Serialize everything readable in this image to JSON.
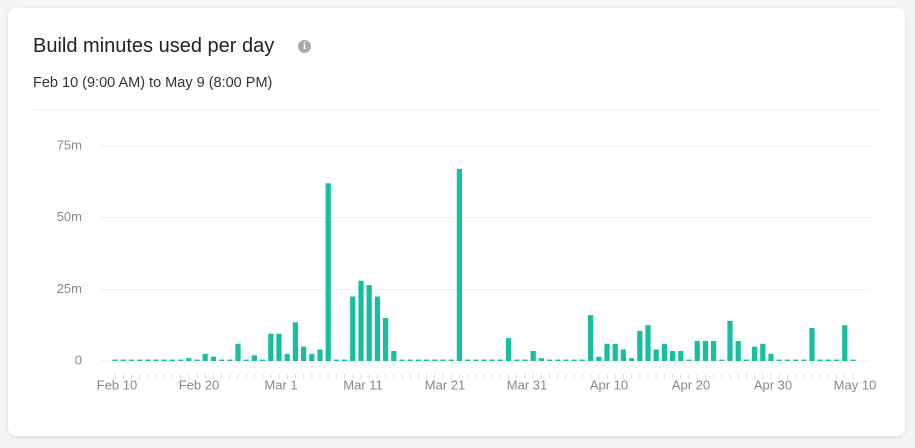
{
  "chart_data": {
    "type": "bar",
    "title": "Build minutes used per day",
    "subtitle": "Feb 10 (9:00 AM) to May 9 (8:00 PM)",
    "categories": [
      "Feb 10",
      null,
      null,
      null,
      null,
      null,
      null,
      null,
      null,
      null,
      "Feb 20",
      null,
      null,
      null,
      null,
      null,
      null,
      null,
      null,
      null,
      "Mar 1",
      null,
      null,
      null,
      null,
      null,
      null,
      null,
      null,
      null,
      "Mar 11",
      null,
      null,
      null,
      null,
      null,
      null,
      null,
      null,
      null,
      "Mar 21",
      null,
      null,
      null,
      null,
      null,
      null,
      null,
      null,
      null,
      "Mar 31",
      null,
      null,
      null,
      null,
      null,
      null,
      null,
      null,
      null,
      "Apr 10",
      null,
      null,
      null,
      null,
      null,
      null,
      null,
      null,
      null,
      "Apr 20",
      null,
      null,
      null,
      null,
      null,
      null,
      null,
      null,
      null,
      "Apr 30",
      null,
      null,
      null,
      null,
      null,
      null,
      null,
      null,
      null,
      "May 10"
    ],
    "values": [
      0.5,
      0.5,
      0.5,
      0.5,
      0.5,
      0.5,
      0.5,
      0.5,
      0.5,
      1,
      0.5,
      2.5,
      1.5,
      0.5,
      0.5,
      6,
      0.5,
      2,
      0.5,
      9.5,
      9.5,
      2.5,
      13.5,
      5,
      2.5,
      4,
      62,
      0.5,
      0.5,
      22.5,
      28,
      26.5,
      22.5,
      15,
      3.5,
      0.5,
      0.5,
      0.5,
      0.5,
      0.5,
      0.5,
      0.5,
      67,
      0.5,
      0.5,
      0.5,
      0.5,
      0.5,
      8,
      0.5,
      0.5,
      3.5,
      1,
      0.5,
      0.5,
      0.5,
      0.5,
      0.5,
      16,
      1.5,
      6,
      6,
      4,
      1,
      10.5,
      12.5,
      4,
      6,
      3.5,
      3.5,
      0.5,
      7,
      7,
      7,
      0.5,
      14,
      7,
      0.5,
      5,
      6,
      2.5,
      0.5,
      0.5,
      0.5,
      0.5,
      11.5,
      0.5,
      0.5,
      0.5,
      12.5,
      0.5
    ],
    "color": "#17bfa0",
    "ylim": [
      0,
      75
    ],
    "yticks": [
      0,
      {
        "value": 25,
        "label": "25m"
      },
      {
        "value": 50,
        "label": "50m"
      },
      {
        "value": 75,
        "label": "75m"
      }
    ],
    "grid": true
  }
}
